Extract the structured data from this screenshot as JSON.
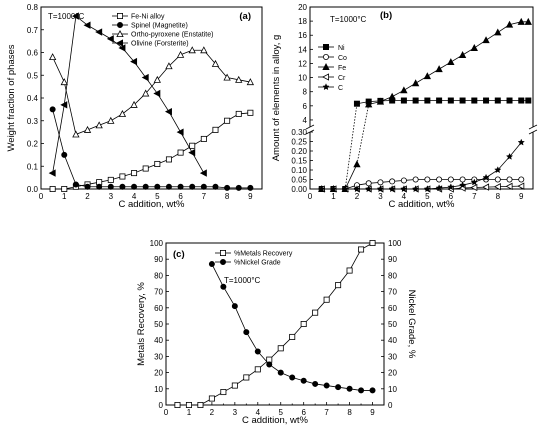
{
  "chart_data": [
    {
      "type": "line",
      "panel_label": "(a)",
      "annotation": "T=1000°C",
      "xlabel": "C addition, wt%",
      "ylabel": "Weight fraction of phases",
      "xlim": [
        0,
        9.5
      ],
      "ylim": [
        0,
        0.8
      ],
      "xticks": [
        "0",
        "1",
        "2",
        "3",
        "4",
        "5",
        "6",
        "7",
        "8",
        "9"
      ],
      "yticks": [
        "0.0",
        "0.1",
        "0.2",
        "0.3",
        "0.4",
        "0.5",
        "0.6",
        "0.7",
        "0.8"
      ],
      "legend_position": "top",
      "series": [
        {
          "name": "Fe-Ni alloy",
          "marker": "square-open",
          "x": [
            0.5,
            1,
            1.5,
            2,
            2.5,
            3,
            3.5,
            4,
            4.5,
            5,
            5.5,
            6,
            6.5,
            7,
            7.5,
            8,
            8.5,
            9
          ],
          "y": [
            0.0,
            0.0,
            0.01,
            0.02,
            0.03,
            0.04,
            0.055,
            0.07,
            0.09,
            0.11,
            0.13,
            0.16,
            0.19,
            0.22,
            0.26,
            0.3,
            0.33,
            0.335
          ]
        },
        {
          "name": "Spinel (Magnetite)",
          "marker": "circle-filled",
          "x": [
            0.5,
            1,
            1.5,
            2,
            2.5,
            3,
            3.5,
            4,
            4.5,
            5,
            5.5,
            6,
            6.5,
            7,
            7.5,
            8,
            8.5,
            9
          ],
          "y": [
            0.35,
            0.15,
            0.02,
            0.01,
            0.01,
            0.01,
            0.01,
            0.01,
            0.01,
            0.01,
            0.01,
            0.01,
            0.01,
            0.01,
            0.01,
            0.005,
            0.005,
            0.005
          ]
        },
        {
          "name": "Ortho-pyroxene (Enstatite)",
          "marker": "triangle-up-open",
          "x": [
            0.5,
            1,
            1.5,
            2,
            2.5,
            3,
            3.5,
            4,
            4.5,
            5,
            5.5,
            6,
            6.5,
            7,
            7.5,
            8,
            8.5,
            9
          ],
          "y": [
            0.58,
            0.47,
            0.24,
            0.26,
            0.28,
            0.3,
            0.33,
            0.37,
            0.42,
            0.48,
            0.54,
            0.59,
            0.61,
            0.61,
            0.55,
            0.49,
            0.48,
            0.47
          ]
        },
        {
          "name": "Olivine (Forsterite)",
          "marker": "triangle-left-filled",
          "x": [
            0.5,
            1,
            1.5,
            2,
            2.5,
            3,
            3.5,
            4,
            4.5,
            5,
            5.5,
            6,
            6.5,
            7
          ],
          "y": [
            0.07,
            0.37,
            0.76,
            0.72,
            0.69,
            0.66,
            0.62,
            0.56,
            0.49,
            0.42,
            0.34,
            0.25,
            0.16,
            0.07
          ]
        }
      ]
    },
    {
      "type": "line",
      "panel_label": "(b)",
      "annotation": "T=1000°C",
      "xlabel": "C addition, wt%",
      "ylabel": "Amount of elements in alloy, g",
      "xlim": [
        0,
        9.5
      ],
      "y_axis_broken": true,
      "upper_ylim": [
        3,
        20
      ],
      "lower_ylim": [
        0,
        0.3
      ],
      "xticks": [
        "0",
        "1",
        "2",
        "3",
        "4",
        "5",
        "6",
        "7",
        "8",
        "9"
      ],
      "upper_yticks": [
        "4",
        "6",
        "8",
        "10",
        "12",
        "14",
        "16",
        "18",
        "20"
      ],
      "lower_yticks": [
        "0.00",
        "0.05",
        "0.10",
        "0.15",
        "0.20",
        "0.25",
        "0.30"
      ],
      "legend_position": "top-left",
      "series": [
        {
          "name": "Ni",
          "marker": "square-filled",
          "segment": "upper",
          "x": [
            2,
            2.5,
            3,
            3.5,
            4,
            4.5,
            5,
            5.5,
            6,
            6.5,
            7,
            7.5,
            8,
            8.5,
            9,
            9.3
          ],
          "y": [
            6.3,
            6.6,
            6.7,
            6.75,
            6.75,
            6.75,
            6.75,
            6.75,
            6.75,
            6.75,
            6.75,
            6.75,
            6.75,
            6.75,
            6.75,
            6.75
          ]
        },
        {
          "name": "Fe",
          "marker": "triangle-up-filled",
          "segment": "upper",
          "x": [
            2.5,
            3,
            3.5,
            4,
            4.5,
            5,
            5.5,
            6,
            6.5,
            7,
            7.5,
            8,
            8.5,
            9,
            9.3
          ],
          "y": [
            6.2,
            6.6,
            7.3,
            8.2,
            9.2,
            10.2,
            11.2,
            12.2,
            13.2,
            14.2,
            15.3,
            16.4,
            17.5,
            17.9,
            17.9
          ]
        },
        {
          "name": "Ni",
          "marker": "square-filled",
          "segment": "lower",
          "x": [
            0.5,
            1,
            1.5
          ],
          "y": [
            0.0,
            0.0,
            0.0
          ]
        },
        {
          "name": "Co",
          "marker": "circle-open",
          "segment": "lower",
          "x": [
            0.5,
            1,
            1.5,
            2,
            2.5,
            3,
            3.5,
            4,
            4.5,
            5,
            5.5,
            6,
            6.5,
            7,
            7.5,
            8,
            8.5,
            9
          ],
          "y": [
            0.0,
            0.0,
            0.0,
            0.02,
            0.03,
            0.035,
            0.04,
            0.045,
            0.05,
            0.05,
            0.05,
            0.05,
            0.05,
            0.05,
            0.05,
            0.05,
            0.05,
            0.05
          ]
        },
        {
          "name": "Fe",
          "marker": "triangle-up-filled",
          "segment": "lower",
          "x": [
            0.5,
            1,
            1.5,
            2
          ],
          "y": [
            0.0,
            0.0,
            0.0,
            0.13
          ]
        },
        {
          "name": "Cr",
          "marker": "triangle-left-open",
          "segment": "lower",
          "x": [
            0.5,
            1,
            1.5,
            2,
            2.5,
            3,
            3.5,
            4,
            4.5,
            5,
            5.5,
            6,
            6.5,
            7,
            7.5,
            8,
            8.5,
            9
          ],
          "y": [
            0.0,
            0.0,
            0.0,
            0.0,
            0.0,
            0.0,
            0.0,
            0.0,
            0.0,
            0.0,
            0.0,
            0.0,
            0.005,
            0.008,
            0.01,
            0.012,
            0.014,
            0.015
          ]
        },
        {
          "name": "C",
          "marker": "star",
          "segment": "lower",
          "x": [
            0.5,
            1,
            1.5,
            2,
            2.5,
            3,
            3.5,
            4,
            4.5,
            5,
            5.5,
            6,
            6.5,
            7,
            7.5,
            8,
            8.5,
            9
          ],
          "y": [
            0.0,
            0.0,
            0.0,
            0.0,
            0.0,
            0.0,
            0.0,
            0.0,
            0.0,
            0.0,
            0.005,
            0.01,
            0.02,
            0.035,
            0.06,
            0.1,
            0.17,
            0.245
          ]
        }
      ]
    },
    {
      "type": "line",
      "panel_label": "(c)",
      "annotation": "T=1000°C",
      "xlabel": "C addition, wt%",
      "ylabel": "Metals Recovery, %",
      "ylabel_right": "Nickel Grade, %",
      "xlim": [
        0,
        9.5
      ],
      "ylim": [
        0,
        100
      ],
      "ylim_right": [
        0,
        100
      ],
      "xticks": [
        "0",
        "1",
        "2",
        "3",
        "4",
        "5",
        "6",
        "7",
        "8",
        "9"
      ],
      "yticks": [
        "0",
        "10",
        "20",
        "30",
        "40",
        "50",
        "60",
        "70",
        "80",
        "90",
        "100"
      ],
      "legend_position": "top-center",
      "series": [
        {
          "name": "%Metals Recovery",
          "marker": "square-open",
          "axis": "left",
          "x": [
            0.5,
            1,
            1.5,
            2,
            2.5,
            3,
            3.5,
            4,
            4.5,
            5,
            5.5,
            6,
            6.5,
            7,
            7.5,
            8,
            8.5,
            9
          ],
          "y": [
            0,
            0,
            0,
            4,
            8,
            12,
            17,
            22,
            28,
            35,
            42,
            50,
            57,
            65,
            74,
            83,
            96,
            100
          ]
        },
        {
          "name": "%Nickel Grade",
          "marker": "circle-filled",
          "axis": "right",
          "x": [
            2,
            2.5,
            3,
            3.5,
            4,
            4.5,
            5,
            5.5,
            6,
            6.5,
            7,
            7.5,
            8,
            8.5,
            9
          ],
          "y": [
            87,
            73,
            61,
            45,
            33,
            25,
            20,
            17,
            15,
            13,
            12,
            11,
            10,
            9,
            9
          ]
        }
      ]
    }
  ]
}
